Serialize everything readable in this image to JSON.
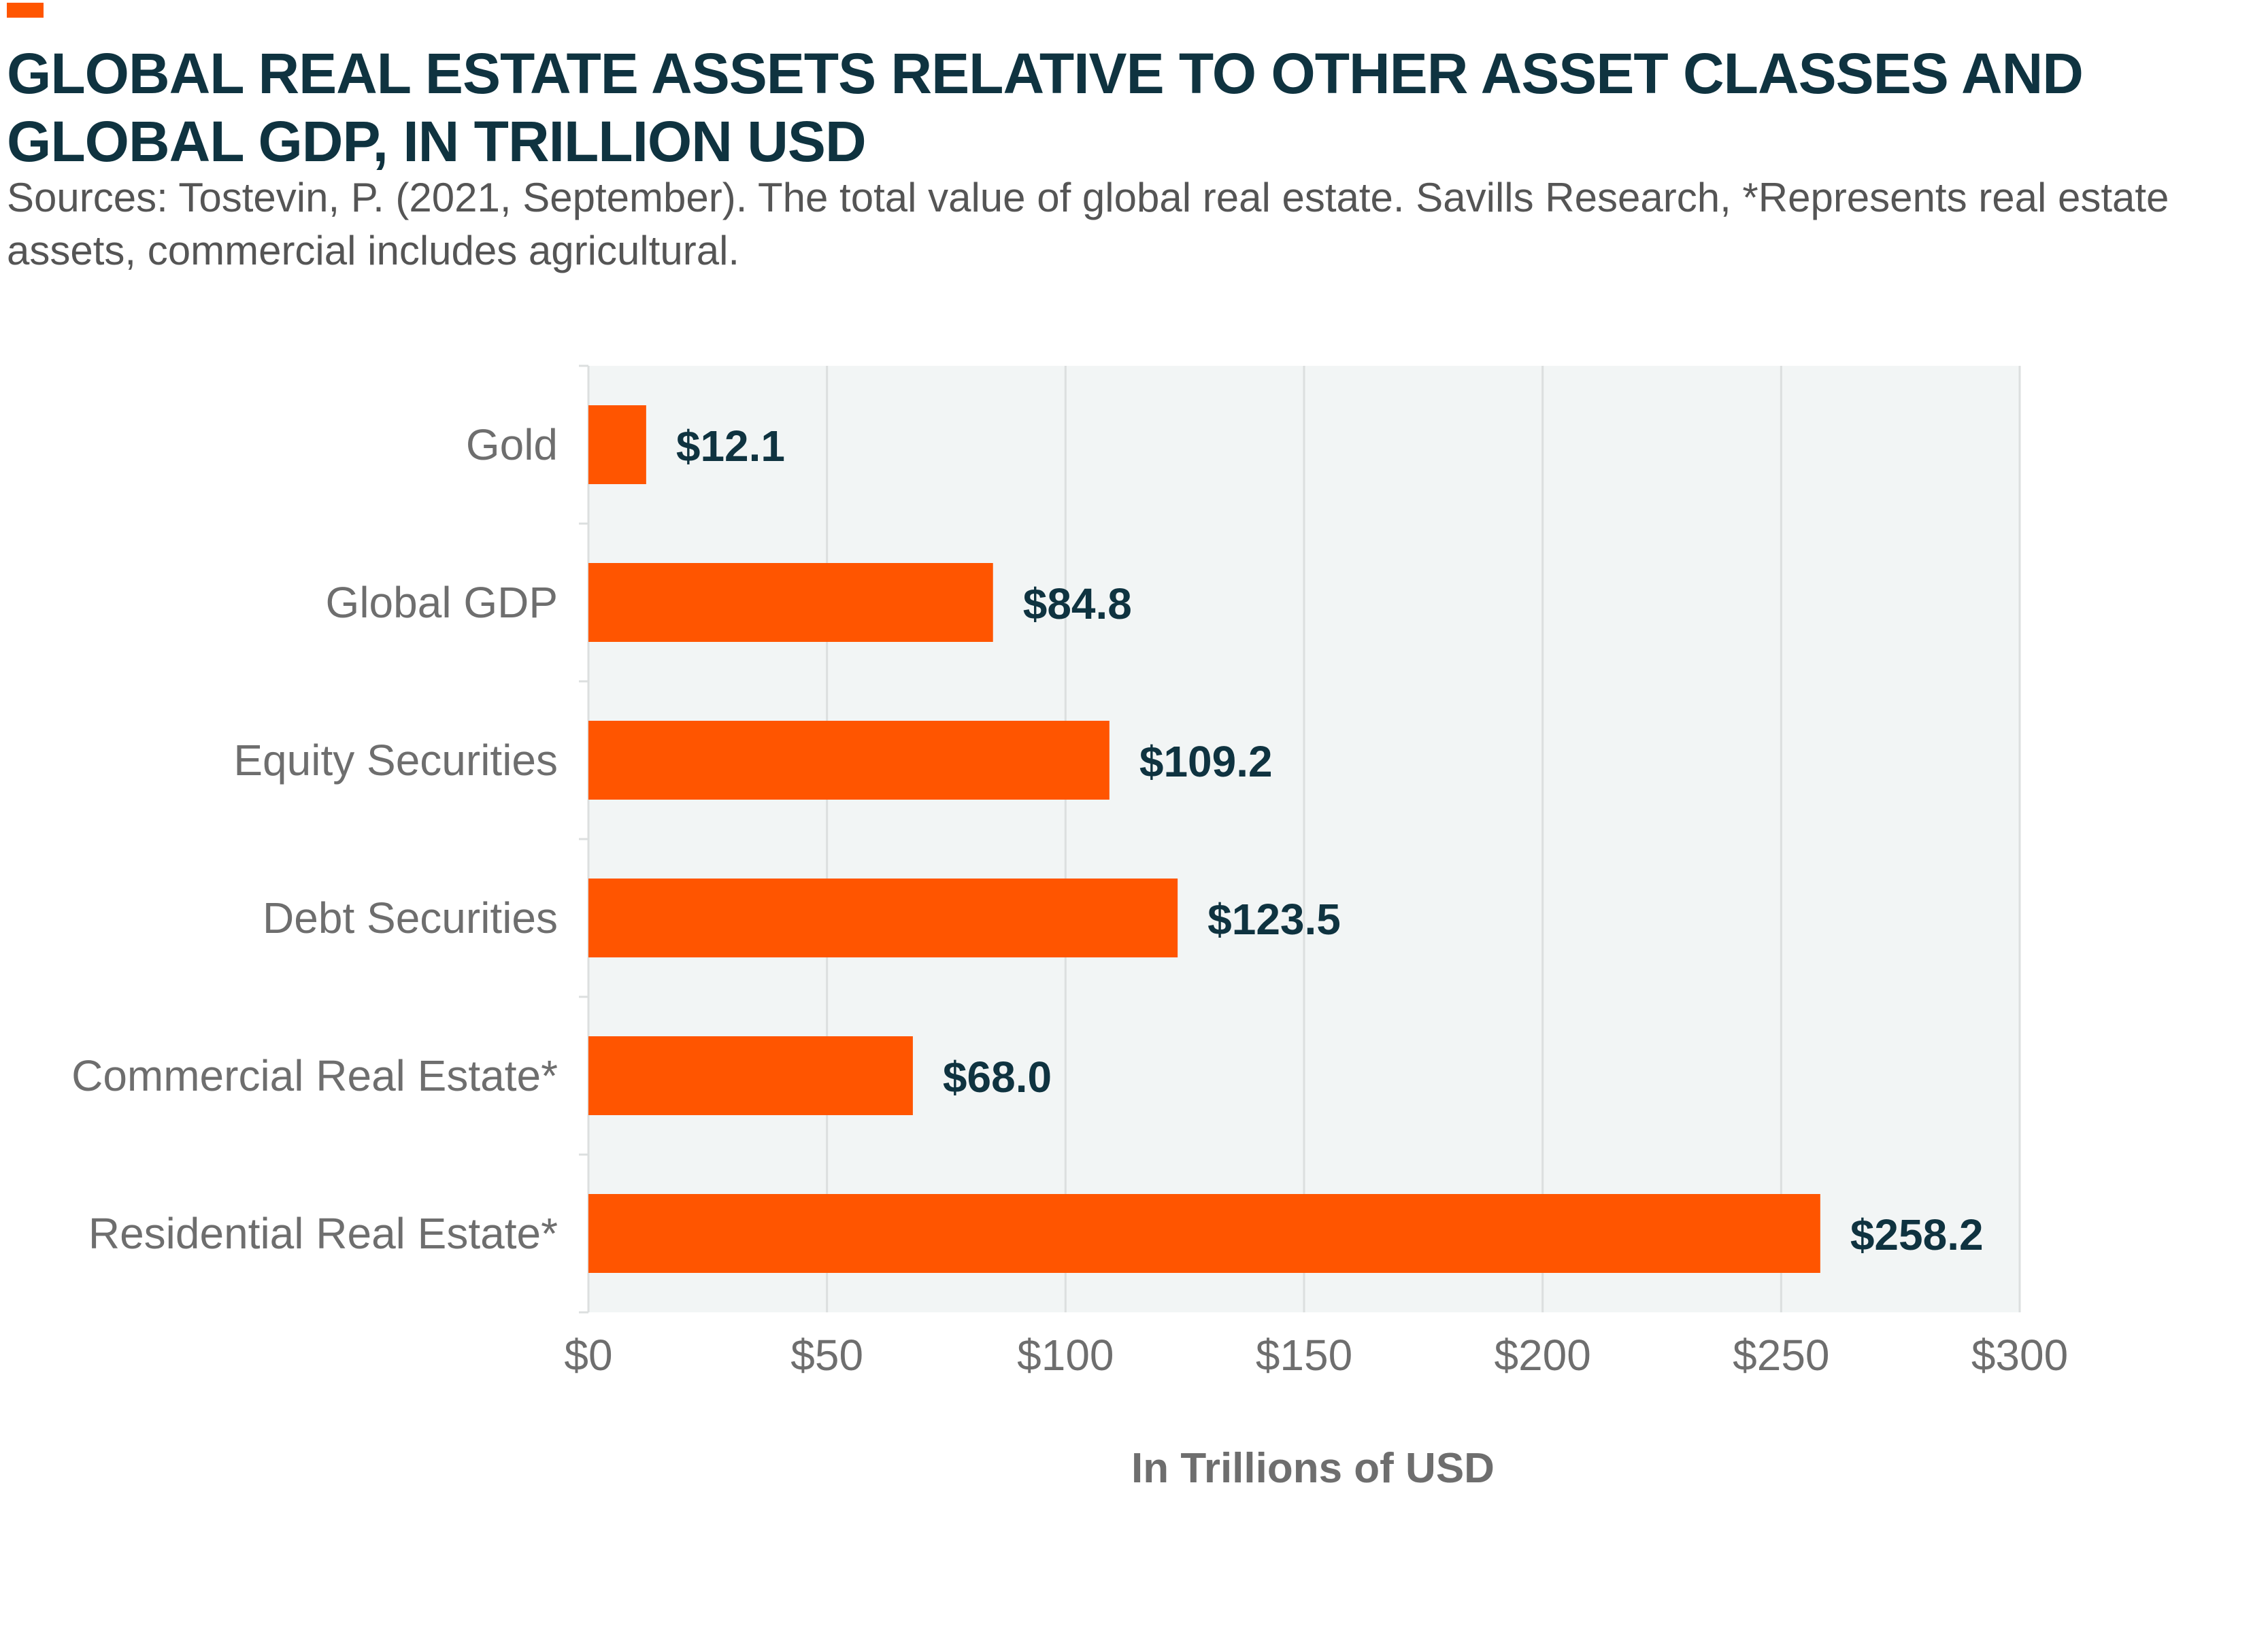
{
  "colors": {
    "title": "#0f3340",
    "subtitle": "#555555",
    "accent": "#ff5500",
    "bar": "#ff5500",
    "plot_background": "#f2f5f5",
    "grid": "#dcdfdf",
    "category_label": "#6e6e6e",
    "value_label": "#0f3340",
    "tick_label": "#6e6e6e",
    "axis_title": "#6e6e6e"
  },
  "header": {
    "title": "GLOBAL REAL ESTATE ASSETS RELATIVE TO OTHER ASSET CLASSES AND GLOBAL GDP, IN TRILLION USD",
    "subtitle": "Sources: Tostevin, P. (2021, September). The total value of global real estate. Savills Research, *Represents real estate assets, commercial includes agricultural."
  },
  "chart_data": {
    "type": "bar",
    "orientation": "horizontal",
    "categories": [
      "Gold",
      "Global GDP",
      "Equity Securities",
      "Debt Securities",
      "Commercial Real Estate*",
      "Residential Real Estate*"
    ],
    "values": [
      12.1,
      84.8,
      109.2,
      123.5,
      68.0,
      258.2
    ],
    "data_labels": [
      "$12.1",
      "$84.8",
      "$109.2",
      "$123.5",
      "$68.0",
      "$258.2"
    ],
    "xlabel": "In Trillions of USD",
    "ylabel": "",
    "xlim": [
      0,
      300
    ],
    "x_ticks": [
      0,
      50,
      100,
      150,
      200,
      250,
      300
    ],
    "x_tick_labels": [
      "$0",
      "$50",
      "$100",
      "$150",
      "$200",
      "$250",
      "$300"
    ],
    "grid": true,
    "legend": "none"
  }
}
